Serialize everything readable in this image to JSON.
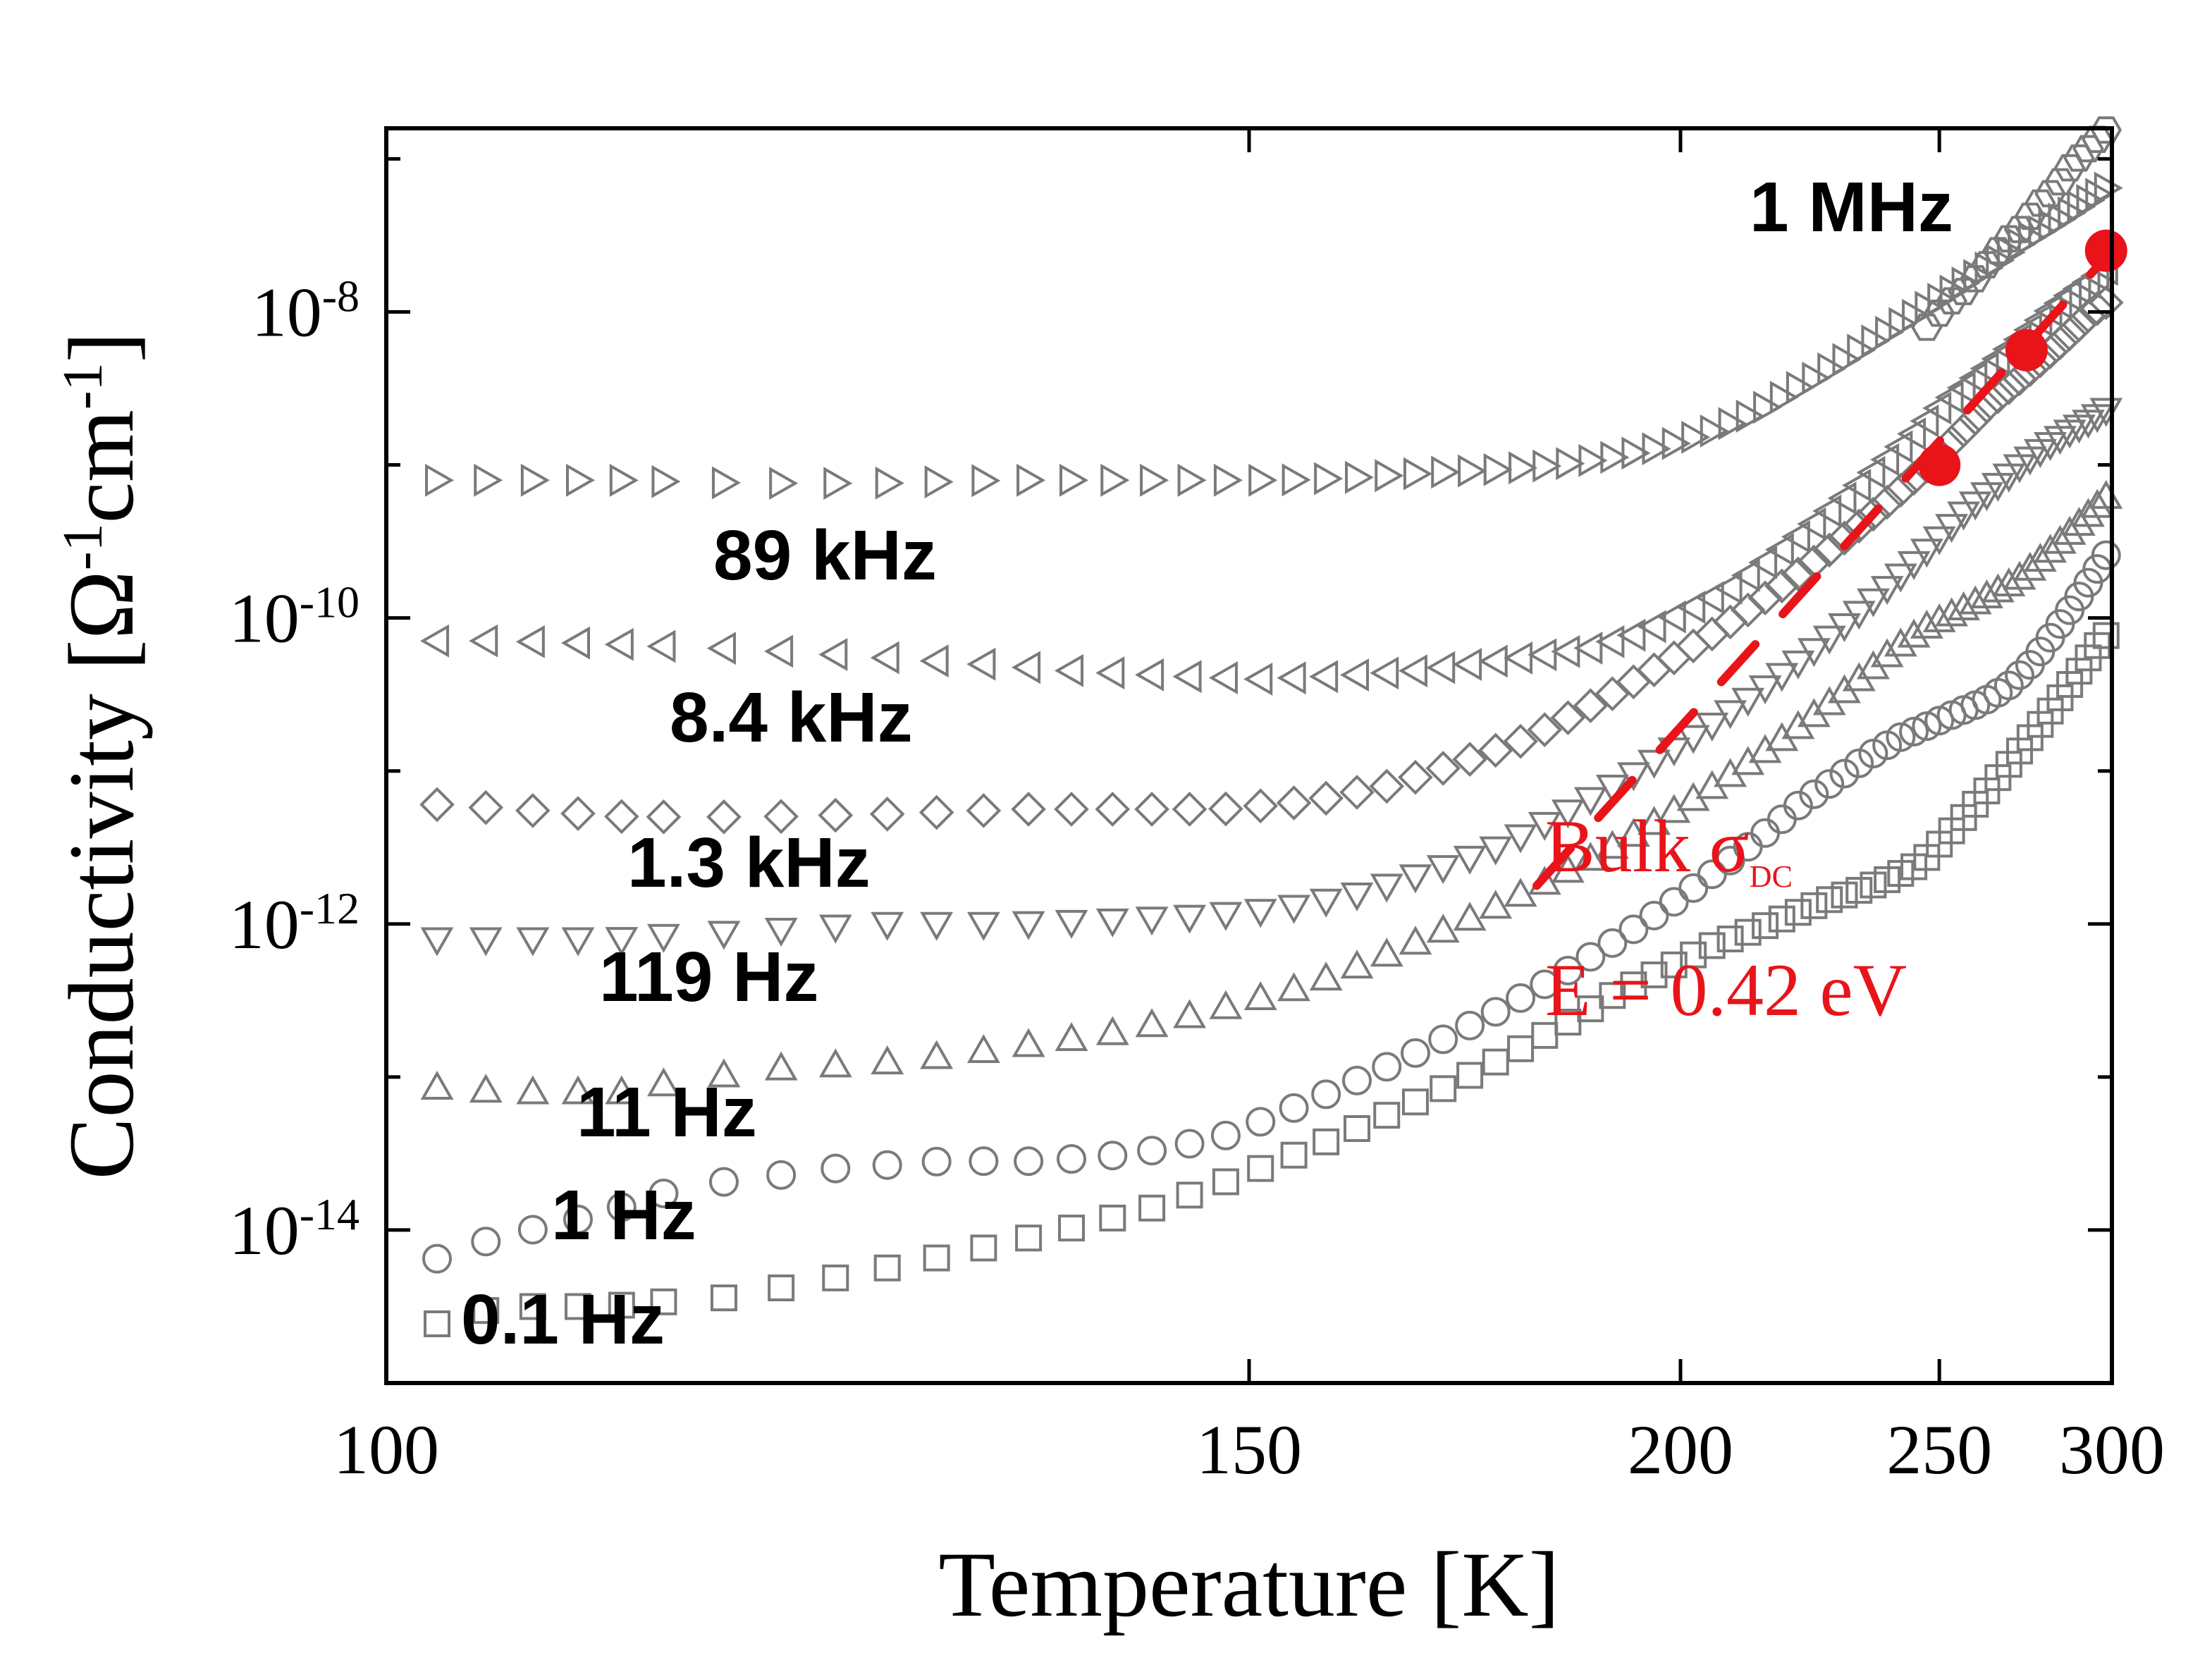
{
  "chart_data": {
    "type": "scatter",
    "title": "",
    "xlabel": "Temperature [K]",
    "ylabel_main": "Conductivity [",
    "ylabel_omega": "Ω",
    "ylabel_unit1": "cm",
    "ylabel_exp": "-1",
    "ylabel_close": "]",
    "x_axis": "1/T (reciprocal temperature)",
    "xlim": [
      100,
      300
    ],
    "ylim_log10": [
      -15.0,
      -6.8
    ],
    "x_ticks": [
      {
        "value": 100,
        "label": "100"
      },
      {
        "value": 150,
        "label": "150"
      },
      {
        "value": 200,
        "label": "200"
      },
      {
        "value": 250,
        "label": "250"
      },
      {
        "value": 300,
        "label": "300"
      }
    ],
    "y_ticks": [
      {
        "value": -8,
        "base": "10",
        "exp": "-8"
      },
      {
        "value": -10,
        "base": "10",
        "exp": "-10"
      },
      {
        "value": -12,
        "base": "10",
        "exp": "-12"
      },
      {
        "value": -14,
        "base": "10",
        "exp": "-14"
      }
    ],
    "x_points": [
      100,
      102,
      104,
      106,
      108,
      110,
      112,
      115,
      118,
      121,
      124,
      127,
      130,
      133,
      136,
      139,
      142,
      145,
      148,
      151,
      154,
      157,
      160,
      163,
      166,
      169,
      172,
      175,
      178,
      181,
      184,
      187,
      190,
      193,
      196,
      199,
      202,
      205,
      208,
      211,
      214,
      217,
      220,
      223,
      226,
      229,
      232,
      235,
      238,
      241,
      244,
      247,
      250,
      253,
      256,
      259,
      262,
      265,
      268,
      271,
      274,
      277,
      280,
      283,
      286,
      289,
      292,
      295,
      298,
      300
    ],
    "series": [
      {
        "name": "1 MHz",
        "marker": "hexagon",
        "x_range": [
          245,
          300
        ],
        "log10_values": [
          -8.1,
          -7.95,
          -7.85,
          -7.7,
          -7.55,
          -7.45,
          -7.3,
          -7.2,
          -7.05,
          -6.95,
          -6.85,
          -6.75
        ]
      },
      {
        "name": "89 kHz",
        "marker": "triangle-right",
        "x_range": [
          100,
          300
        ],
        "log10_values": [
          -9.1,
          -9.1,
          -9.1,
          -9.12,
          -9.12,
          -9.1,
          -9.1,
          -9.1,
          -9.1,
          -9.08,
          -9.05,
          -9.03,
          -9.0,
          -8.95,
          -8.88,
          -8.78,
          -8.66,
          -8.5,
          -8.35,
          -8.2,
          -8.06,
          -7.93,
          -7.8,
          -7.68,
          -7.55,
          -7.45,
          -7.35,
          -7.25,
          -7.15
        ]
      },
      {
        "name": "8.4 kHz",
        "marker": "triangle-left",
        "x_range": [
          100,
          300
        ],
        "log10_values": [
          -10.15,
          -10.15,
          -10.17,
          -10.2,
          -10.25,
          -10.3,
          -10.35,
          -10.38,
          -10.4,
          -10.38,
          -10.35,
          -10.3,
          -10.25,
          -10.2,
          -10.1,
          -9.95,
          -9.8,
          -9.6,
          -9.4,
          -9.2,
          -9.0,
          -8.8,
          -8.6,
          -8.45,
          -8.3,
          -8.15,
          -8.0,
          -7.88,
          -7.78,
          -7.68
        ]
      },
      {
        "name": "1.3 kHz",
        "marker": "diamond",
        "x_range": [
          100,
          300
        ],
        "log10_values": [
          -11.2,
          -11.25,
          -11.3,
          -11.3,
          -11.28,
          -11.25,
          -11.25,
          -11.25,
          -11.2,
          -11.1,
          -10.95,
          -10.8,
          -10.6,
          -10.4,
          -10.2,
          -10.0,
          -9.8,
          -9.6,
          -9.4,
          -9.2,
          -9.0,
          -8.8,
          -8.6,
          -8.45,
          -8.3,
          -8.15,
          -8.0,
          -7.9
        ]
      },
      {
        "name": "119 Hz",
        "marker": "triangle-down",
        "x_range": [
          100,
          300
        ],
        "log10_values": [
          -12.1,
          -12.1,
          -12.1,
          -12.05,
          -12.0,
          -12.0,
          -11.98,
          -11.95,
          -11.9,
          -11.8,
          -11.65,
          -11.5,
          -11.3,
          -11.1,
          -10.9,
          -10.7,
          -10.5,
          -10.3,
          -10.1,
          -9.9,
          -9.7,
          -9.5,
          -9.3,
          -9.15,
          -9.0,
          -8.88,
          -8.78,
          -8.7,
          -8.6
        ]
      },
      {
        "name": "11 Hz",
        "marker": "triangle-up",
        "x_range": [
          100,
          300
        ],
        "log10_values": [
          -13.05,
          -13.1,
          -13.1,
          -12.95,
          -12.9,
          -12.8,
          -12.7,
          -12.55,
          -12.4,
          -12.2,
          -12.0,
          -11.8,
          -11.6,
          -11.4,
          -11.2,
          -11.0,
          -10.8,
          -10.6,
          -10.4,
          -10.2,
          -10.05,
          -9.95,
          -9.85,
          -9.75,
          -9.6,
          -9.45,
          -9.3,
          -9.15
        ]
      },
      {
        "name": "1 Hz",
        "marker": "circle",
        "x_range": [
          100,
          300
        ],
        "log10_values": [
          -14.3,
          -14.05,
          -13.9,
          -13.7,
          -13.6,
          -13.55,
          -13.55,
          -13.5,
          -13.4,
          -13.2,
          -13.0,
          -12.8,
          -12.6,
          -12.4,
          -12.2,
          -12.0,
          -11.8,
          -11.6,
          -11.4,
          -11.2,
          -11.05,
          -10.9,
          -10.78,
          -10.7,
          -10.62,
          -10.55,
          -10.45,
          -10.3,
          -10.1,
          -9.9,
          -9.7,
          -9.5
        ]
      },
      {
        "name": "0.1 Hz",
        "marker": "square",
        "x_range": [
          100,
          300
        ],
        "log10_values": [
          -14.7,
          -14.5,
          -14.5,
          -14.45,
          -14.3,
          -14.15,
          -14.0,
          -13.85,
          -13.65,
          -13.45,
          -13.25,
          -13.05,
          -12.85,
          -12.65,
          -12.45,
          -12.3,
          -12.15,
          -12.05,
          -11.95,
          -11.85,
          -11.78,
          -11.7,
          -11.6,
          -11.4,
          -11.2,
          -11.0,
          -10.8,
          -10.6,
          -10.4,
          -10.2,
          -10.05
        ]
      },
      {
        "name": "Bulk σDC",
        "marker": "filled-circle",
        "color": "#e8141a",
        "x": [
          250,
          273,
          298
        ],
        "log10_values": [
          -9.0,
          -8.25,
          -7.6
        ],
        "fit_line": {
          "style": "dashed",
          "x_range": [
            180,
            300
          ],
          "log10_range": [
            -11.75,
            -7.6
          ]
        }
      }
    ],
    "annotations": {
      "mhz": "1 MHz",
      "khz89": "89 kHz",
      "khz84": "8.4 kHz",
      "khz13": "1.3 kHz",
      "hz119": "119 Hz",
      "hz11": "11 Hz",
      "hz1": "1 Hz",
      "hz01": "0.1 Hz",
      "bulk_prefix": "Bulk σ",
      "bulk_sub": "DC",
      "energy": "E = 0.42 eV"
    },
    "colors": {
      "markers": "#7a7a7a",
      "fit": "#e8141a",
      "axes": "#000000"
    }
  }
}
